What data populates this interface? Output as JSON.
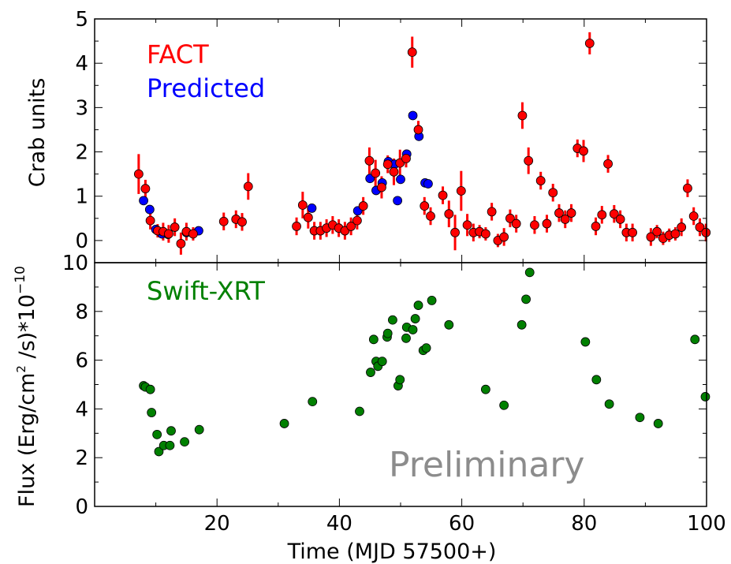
{
  "chart_data": [
    {
      "type": "scatter",
      "panel": "top",
      "ylabel": "Crab units",
      "xlim": [
        0,
        100
      ],
      "ylim": [
        -0.5,
        5
      ],
      "y_ticks": [
        0,
        1,
        2,
        3,
        4,
        5
      ],
      "grid": false,
      "legend_placement": "top-left",
      "colors": {
        "FACT": "#ff0000",
        "Predicted": "#0000ff",
        "errorbar": "#ff0000"
      },
      "series": [
        {
          "name": "FACT",
          "points": [
            {
              "x": 7.2,
              "y": 1.5,
              "err": 0.45
            },
            {
              "x": 8.3,
              "y": 1.17,
              "err": 0.2
            },
            {
              "x": 9.1,
              "y": 0.45,
              "err": 0.2
            },
            {
              "x": 10.3,
              "y": 0.22,
              "err": 0.15
            },
            {
              "x": 11.2,
              "y": 0.2,
              "err": 0.2
            },
            {
              "x": 12.1,
              "y": 0.15,
              "err": 0.2
            },
            {
              "x": 13.1,
              "y": 0.3,
              "err": 0.2
            },
            {
              "x": 14.1,
              "y": -0.07,
              "err": 0.25
            },
            {
              "x": 15.0,
              "y": 0.2,
              "err": 0.2
            },
            {
              "x": 16.1,
              "y": 0.15,
              "err": 0.15
            },
            {
              "x": 21.1,
              "y": 0.43,
              "err": 0.2
            },
            {
              "x": 23.1,
              "y": 0.48,
              "err": 0.2
            },
            {
              "x": 24.1,
              "y": 0.42,
              "err": 0.2
            },
            {
              "x": 25.1,
              "y": 1.22,
              "err": 0.3
            },
            {
              "x": 33.0,
              "y": 0.32,
              "err": 0.2
            },
            {
              "x": 34.0,
              "y": 0.8,
              "err": 0.3
            },
            {
              "x": 34.9,
              "y": 0.52,
              "err": 0.25
            },
            {
              "x": 35.9,
              "y": 0.22,
              "err": 0.2
            },
            {
              "x": 36.9,
              "y": 0.22,
              "err": 0.2
            },
            {
              "x": 37.9,
              "y": 0.28,
              "err": 0.2
            },
            {
              "x": 38.9,
              "y": 0.35,
              "err": 0.2
            },
            {
              "x": 39.9,
              "y": 0.28,
              "err": 0.2
            },
            {
              "x": 40.9,
              "y": 0.22,
              "err": 0.2
            },
            {
              "x": 41.9,
              "y": 0.32,
              "err": 0.2
            },
            {
              "x": 42.9,
              "y": 0.45,
              "err": 0.2
            },
            {
              "x": 43.9,
              "y": 0.78,
              "err": 0.2
            },
            {
              "x": 44.9,
              "y": 1.8,
              "err": 0.3
            },
            {
              "x": 45.9,
              "y": 1.52,
              "err": 0.3
            },
            {
              "x": 46.9,
              "y": 1.2,
              "err": 0.25
            },
            {
              "x": 47.9,
              "y": 1.72,
              "err": 0.2
            },
            {
              "x": 48.9,
              "y": 1.55,
              "err": 0.3
            },
            {
              "x": 49.9,
              "y": 1.75,
              "err": 0.3
            },
            {
              "x": 50.9,
              "y": 1.85,
              "err": 0.2
            },
            {
              "x": 51.9,
              "y": 4.25,
              "err": 0.35
            },
            {
              "x": 52.9,
              "y": 2.5,
              "err": 0.2
            },
            {
              "x": 53.9,
              "y": 0.78,
              "err": 0.2
            },
            {
              "x": 54.9,
              "y": 0.55,
              "err": 0.2
            },
            {
              "x": 56.9,
              "y": 1.02,
              "err": 0.2
            },
            {
              "x": 57.9,
              "y": 0.6,
              "err": 0.3
            },
            {
              "x": 58.9,
              "y": 0.18,
              "err": 0.4
            },
            {
              "x": 59.9,
              "y": 1.12,
              "err": 0.45
            },
            {
              "x": 60.9,
              "y": 0.35,
              "err": 0.25
            },
            {
              "x": 61.9,
              "y": 0.18,
              "err": 0.2
            },
            {
              "x": 62.9,
              "y": 0.2,
              "err": 0.15
            },
            {
              "x": 63.9,
              "y": 0.15,
              "err": 0.15
            },
            {
              "x": 64.9,
              "y": 0.65,
              "err": 0.2
            },
            {
              "x": 65.9,
              "y": 0.0,
              "err": 0.15
            },
            {
              "x": 66.9,
              "y": 0.08,
              "err": 0.2
            },
            {
              "x": 67.9,
              "y": 0.5,
              "err": 0.2
            },
            {
              "x": 68.9,
              "y": 0.38,
              "err": 0.2
            },
            {
              "x": 69.9,
              "y": 2.82,
              "err": 0.3
            },
            {
              "x": 70.9,
              "y": 1.8,
              "err": 0.3
            },
            {
              "x": 71.9,
              "y": 0.35,
              "err": 0.2
            },
            {
              "x": 72.9,
              "y": 1.35,
              "err": 0.2
            },
            {
              "x": 73.9,
              "y": 0.38,
              "err": 0.2
            },
            {
              "x": 74.9,
              "y": 1.08,
              "err": 0.2
            },
            {
              "x": 75.9,
              "y": 0.62,
              "err": 0.2
            },
            {
              "x": 76.9,
              "y": 0.48,
              "err": 0.2
            },
            {
              "x": 77.9,
              "y": 0.62,
              "err": 0.2
            },
            {
              "x": 78.9,
              "y": 2.08,
              "err": 0.2
            },
            {
              "x": 79.9,
              "y": 2.02,
              "err": 0.25
            },
            {
              "x": 80.9,
              "y": 4.45,
              "err": 0.25
            },
            {
              "x": 81.9,
              "y": 0.32,
              "err": 0.2
            },
            {
              "x": 82.9,
              "y": 0.58,
              "err": 0.2
            },
            {
              "x": 83.9,
              "y": 1.73,
              "err": 0.2
            },
            {
              "x": 84.9,
              "y": 0.6,
              "err": 0.2
            },
            {
              "x": 85.9,
              "y": 0.48,
              "err": 0.2
            },
            {
              "x": 86.9,
              "y": 0.18,
              "err": 0.2
            },
            {
              "x": 87.9,
              "y": 0.18,
              "err": 0.2
            },
            {
              "x": 90.9,
              "y": 0.08,
              "err": 0.2
            },
            {
              "x": 91.9,
              "y": 0.2,
              "err": 0.15
            },
            {
              "x": 92.9,
              "y": 0.05,
              "err": 0.15
            },
            {
              "x": 93.9,
              "y": 0.12,
              "err": 0.15
            },
            {
              "x": 94.9,
              "y": 0.15,
              "err": 0.15
            },
            {
              "x": 95.9,
              "y": 0.3,
              "err": 0.2
            },
            {
              "x": 96.9,
              "y": 1.18,
              "err": 0.2
            },
            {
              "x": 97.9,
              "y": 0.55,
              "err": 0.2
            },
            {
              "x": 98.9,
              "y": 0.3,
              "err": 0.2
            },
            {
              "x": 99.9,
              "y": 0.18,
              "err": 0.2
            }
          ]
        },
        {
          "name": "Predicted",
          "points": [
            {
              "x": 8.0,
              "y": 0.9
            },
            {
              "x": 9.0,
              "y": 0.7
            },
            {
              "x": 10.0,
              "y": 0.25
            },
            {
              "x": 11.0,
              "y": 0.15
            },
            {
              "x": 12.0,
              "y": 0.14
            },
            {
              "x": 15.0,
              "y": 0.18
            },
            {
              "x": 17.0,
              "y": 0.22
            },
            {
              "x": 35.5,
              "y": 0.73
            },
            {
              "x": 43.0,
              "y": 0.67
            },
            {
              "x": 45.0,
              "y": 1.4
            },
            {
              "x": 46.0,
              "y": 1.13
            },
            {
              "x": 47.0,
              "y": 1.3
            },
            {
              "x": 48.0,
              "y": 1.78
            },
            {
              "x": 49.0,
              "y": 1.72
            },
            {
              "x": 49.5,
              "y": 0.9
            },
            {
              "x": 50.0,
              "y": 1.38
            },
            {
              "x": 51.0,
              "y": 1.95
            },
            {
              "x": 52.0,
              "y": 2.82
            },
            {
              "x": 53.0,
              "y": 2.35
            },
            {
              "x": 54.0,
              "y": 1.3
            },
            {
              "x": 54.5,
              "y": 1.28
            }
          ]
        }
      ]
    },
    {
      "type": "scatter",
      "panel": "bottom",
      "xlabel": "Time (MJD 57500+)",
      "ylabel": "Flux (Erg/cm² /s)*10⁻¹⁰",
      "xlim": [
        0,
        100
      ],
      "ylim": [
        0,
        10
      ],
      "x_ticks": [
        20,
        40,
        60,
        80,
        100
      ],
      "y_ticks": [
        0,
        2,
        4,
        6,
        8,
        10
      ],
      "grid": false,
      "legend_placement": "top-left",
      "colors": {
        "Swift-XRT": "#008000"
      },
      "series": [
        {
          "name": "Swift-XRT",
          "points": [
            {
              "x": 8.0,
              "y": 4.95
            },
            {
              "x": 8.3,
              "y": 4.9
            },
            {
              "x": 9.1,
              "y": 4.8
            },
            {
              "x": 9.3,
              "y": 3.85
            },
            {
              "x": 10.2,
              "y": 2.95
            },
            {
              "x": 10.5,
              "y": 2.25
            },
            {
              "x": 11.3,
              "y": 2.5
            },
            {
              "x": 12.3,
              "y": 2.5
            },
            {
              "x": 12.5,
              "y": 3.1
            },
            {
              "x": 14.7,
              "y": 2.65
            },
            {
              "x": 17.1,
              "y": 3.15
            },
            {
              "x": 31.0,
              "y": 3.4
            },
            {
              "x": 35.6,
              "y": 4.3
            },
            {
              "x": 43.3,
              "y": 3.9
            },
            {
              "x": 45.1,
              "y": 5.5
            },
            {
              "x": 45.6,
              "y": 6.85
            },
            {
              "x": 46.0,
              "y": 5.95
            },
            {
              "x": 46.3,
              "y": 5.75
            },
            {
              "x": 47.0,
              "y": 5.95
            },
            {
              "x": 47.8,
              "y": 6.95
            },
            {
              "x": 47.9,
              "y": 7.1
            },
            {
              "x": 48.7,
              "y": 7.65
            },
            {
              "x": 49.6,
              "y": 4.95
            },
            {
              "x": 49.9,
              "y": 5.2
            },
            {
              "x": 50.9,
              "y": 6.9
            },
            {
              "x": 51.0,
              "y": 7.35
            },
            {
              "x": 52.0,
              "y": 7.25
            },
            {
              "x": 52.4,
              "y": 7.7
            },
            {
              "x": 52.9,
              "y": 8.25
            },
            {
              "x": 53.7,
              "y": 6.4
            },
            {
              "x": 54.2,
              "y": 6.5
            },
            {
              "x": 55.1,
              "y": 8.45
            },
            {
              "x": 57.9,
              "y": 7.45
            },
            {
              "x": 63.9,
              "y": 4.8
            },
            {
              "x": 66.9,
              "y": 4.15
            },
            {
              "x": 69.8,
              "y": 7.45
            },
            {
              "x": 70.5,
              "y": 8.5
            },
            {
              "x": 71.1,
              "y": 9.6
            },
            {
              "x": 80.2,
              "y": 6.75
            },
            {
              "x": 82.0,
              "y": 5.2
            },
            {
              "x": 84.1,
              "y": 4.2
            },
            {
              "x": 89.1,
              "y": 3.65
            },
            {
              "x": 92.1,
              "y": 3.4
            },
            {
              "x": 98.1,
              "y": 6.85
            },
            {
              "x": 99.8,
              "y": 4.5
            }
          ]
        }
      ]
    }
  ],
  "legend": {
    "fact_label": "FACT",
    "predicted_label": "Predicted",
    "swift_label": "Swift-XRT",
    "fact_color": "#ff0000",
    "predicted_color": "#0000ff",
    "swift_color": "#008000"
  },
  "axes": {
    "top_ylabel": "Crab units",
    "bottom_ylabel_main": "Flux (Erg/cm",
    "bottom_ylabel_sup": "2",
    "bottom_ylabel_mid": " /s)*10",
    "bottom_ylabel_exp": "−10",
    "xlabel": "Time (MJD 57500+)"
  },
  "watermark": {
    "text": "Preliminary",
    "color": "#8c8c8c"
  }
}
